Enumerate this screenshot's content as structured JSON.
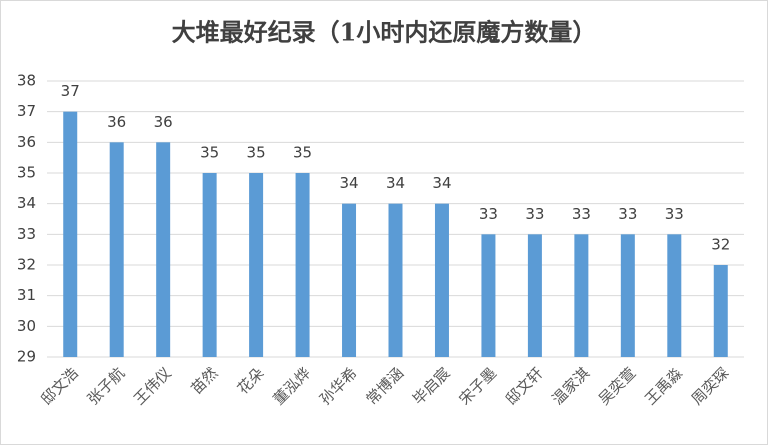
{
  "chart_data": {
    "type": "bar",
    "title": "大堆最好纪录（1小时内还原魔方数量）",
    "categories": [
      "邸文浩",
      "张子航",
      "王伟仪",
      "苗然",
      "花朵",
      "董泓烨",
      "孙华希",
      "常博涵",
      "毕启宸",
      "宋子墨",
      "邸文轩",
      "温家淇",
      "吴奕萱",
      "王禹淼",
      "周奕琛"
    ],
    "values": [
      37,
      36,
      36,
      35,
      35,
      35,
      34,
      34,
      34,
      33,
      33,
      33,
      33,
      33,
      32
    ],
    "color": "#5b9bd5",
    "ylim": [
      29,
      38
    ],
    "yticks": [
      29,
      30,
      31,
      32,
      33,
      34,
      35,
      36,
      37,
      38
    ],
    "grid": true
  }
}
